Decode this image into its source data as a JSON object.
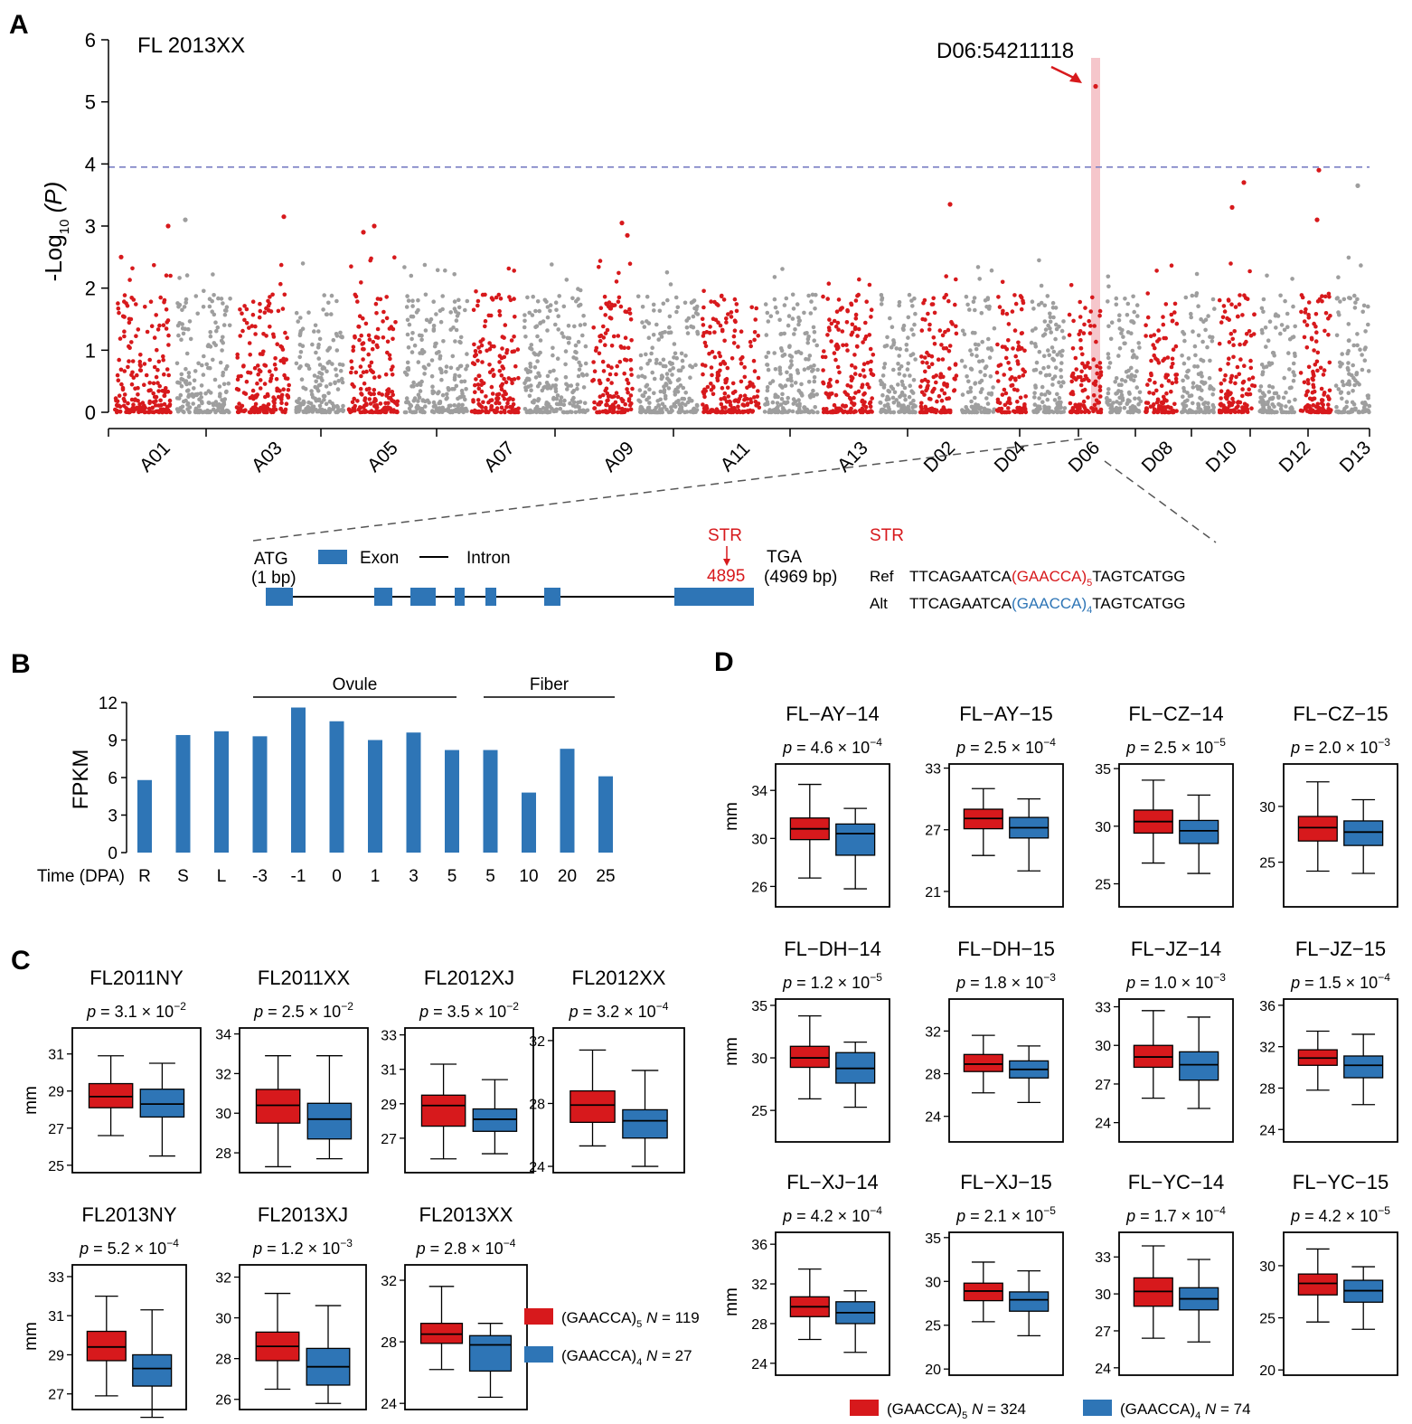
{
  "panels": {
    "A": "A",
    "B": "B",
    "C": "C",
    "D": "D"
  },
  "colors": {
    "red": "#d7191c",
    "blue": "#2e75b6",
    "grey": "#9e9e9e",
    "threshold": "#7b7fc4",
    "highlight": "#f5c6cb"
  },
  "panelA": {
    "title": "FL 2013XX",
    "ylabel_pre": "-Log",
    "ylabel_sub": "10",
    "ylabel_p": "(P)",
    "yticks": [
      "0",
      "1",
      "2",
      "3",
      "4",
      "5",
      "6"
    ],
    "peak_label": "D06:54211118",
    "chrom_labels": [
      "A01",
      "A03",
      "A05",
      "A07",
      "A09",
      "A11",
      "A13",
      "D02",
      "D04",
      "D06",
      "D08",
      "D10",
      "D12",
      "D13"
    ]
  },
  "gene": {
    "atg": "ATG",
    "atg_pos": "(1 bp)",
    "exon_legend": "Exon",
    "intron_legend": "Intron",
    "str_label": "STR",
    "str_pos": "4895",
    "tga": "TGA",
    "tga_pos": "(4969 bp)",
    "str_title": "STR",
    "ref_label": "Ref",
    "alt_label": "Alt",
    "seq_prefix": "TTCAGAATCA",
    "ref_motif": "(GAACCA)",
    "ref_sub": "5",
    "alt_motif": "(GAACCA)",
    "alt_sub": "4",
    "seq_suffix": "TAGTCATGG"
  },
  "chart_data": [
    {
      "panel": "A",
      "type": "scatter",
      "title": "FL 2013XX",
      "xlabel": "",
      "ylabel": "-Log10 (P)",
      "ylim": [
        0,
        6
      ],
      "threshold": 3.95,
      "highlight_chromosome": "D06",
      "peak": {
        "label": "D06:54211118",
        "y": 5.25
      },
      "notable_points": [
        {
          "chrom": "A01",
          "y": 2.5
        },
        {
          "chrom": "A01",
          "y": 3.0
        },
        {
          "chrom": "A02",
          "y": 3.1
        },
        {
          "chrom": "A03",
          "y": 3.15
        },
        {
          "chrom": "A05",
          "y": 3.0
        },
        {
          "chrom": "A05",
          "y": 2.9
        },
        {
          "chrom": "A09",
          "y": 3.05
        },
        {
          "chrom": "A09",
          "y": 2.85
        },
        {
          "chrom": "D02",
          "y": 3.35
        },
        {
          "chrom": "D06",
          "y": 5.25
        },
        {
          "chrom": "D10",
          "y": 3.7
        },
        {
          "chrom": "D10",
          "y": 3.3
        },
        {
          "chrom": "D12",
          "y": 3.9
        },
        {
          "chrom": "D12",
          "y": 3.1
        },
        {
          "chrom": "D13",
          "y": 3.65
        }
      ]
    },
    {
      "panel": "B",
      "type": "bar",
      "title": "",
      "xlabel": "Time (DPA)",
      "ylabel": "FPKM",
      "ylim": [
        0,
        12
      ],
      "yticks": [
        "0",
        "3",
        "6",
        "9",
        "12"
      ],
      "categories": [
        "R",
        "S",
        "L",
        "-3",
        "-1",
        "0",
        "1",
        "3",
        "5",
        "5",
        "10",
        "20",
        "25"
      ],
      "values": [
        5.8,
        9.4,
        9.7,
        9.3,
        11.6,
        10.5,
        9.0,
        9.6,
        8.2,
        8.2,
        4.8,
        8.3,
        6.1
      ],
      "groups": [
        {
          "name": "Ovule",
          "from": 3,
          "to": 8
        },
        {
          "name": "Fiber",
          "from": 9,
          "to": 11
        }
      ]
    },
    {
      "panel": "C",
      "type": "boxplot",
      "ylabel": "mm",
      "legend": [
        {
          "motif": "(GAACCA)",
          "sub": "5",
          "n": "N = 119",
          "color": "#d7191c"
        },
        {
          "motif": "(GAACCA)",
          "sub": "4",
          "n": "N = 27",
          "color": "#2e75b6"
        }
      ],
      "plots": [
        {
          "title": "FL2011NY",
          "p": "3.1 × 10",
          "exp": "−2",
          "ylim": [
            24.6,
            32.4
          ],
          "yticks": [
            "25",
            "27",
            "29",
            "31"
          ],
          "boxes": [
            {
              "min": 26.6,
              "q1": 28.1,
              "med": 28.7,
              "q3": 29.4,
              "max": 30.9
            },
            {
              "min": 25.5,
              "q1": 27.6,
              "med": 28.3,
              "q3": 29.1,
              "max": 30.5
            }
          ]
        },
        {
          "title": "FL2011XX",
          "p": "2.5 × 10",
          "exp": "−2",
          "ylim": [
            27.0,
            34.3
          ],
          "yticks": [
            "28",
            "30",
            "32",
            "34"
          ],
          "boxes": [
            {
              "min": 27.3,
              "q1": 29.5,
              "med": 30.4,
              "q3": 31.2,
              "max": 32.9
            },
            {
              "min": 27.7,
              "q1": 28.7,
              "med": 29.7,
              "q3": 30.5,
              "max": 32.9
            }
          ]
        },
        {
          "title": "FL2012XJ",
          "p": "3.5 × 10",
          "exp": "−2",
          "ylim": [
            25.0,
            33.4
          ],
          "yticks": [
            "27",
            "29",
            "31",
            "33"
          ],
          "boxes": [
            {
              "min": 25.8,
              "q1": 27.7,
              "med": 28.9,
              "q3": 29.5,
              "max": 31.3
            },
            {
              "min": 26.1,
              "q1": 27.4,
              "med": 28.1,
              "q3": 28.7,
              "max": 30.4
            }
          ]
        },
        {
          "title": "FL2012XX",
          "p": "3.2 × 10",
          "exp": "−4",
          "ylim": [
            23.6,
            32.8
          ],
          "yticks": [
            "24",
            "28",
            "32"
          ],
          "boxes": [
            {
              "min": 25.3,
              "q1": 26.8,
              "med": 27.9,
              "q3": 28.8,
              "max": 31.4
            },
            {
              "min": 24.0,
              "q1": 25.8,
              "med": 26.9,
              "q3": 27.6,
              "max": 30.1
            }
          ]
        },
        {
          "title": "FL2013NY",
          "p": "5.2 × 10",
          "exp": "−4",
          "ylim": [
            26.2,
            33.6
          ],
          "yticks": [
            "27",
            "29",
            "31",
            "33"
          ],
          "boxes": [
            {
              "min": 26.9,
              "q1": 28.7,
              "med": 29.4,
              "q3": 30.2,
              "max": 32.0
            },
            {
              "min": 25.8,
              "q1": 27.4,
              "med": 28.3,
              "q3": 29.0,
              "max": 31.3
            }
          ]
        },
        {
          "title": "FL2013XJ",
          "p": "1.2 × 10",
          "exp": "−3",
          "ylim": [
            25.5,
            32.6
          ],
          "yticks": [
            "26",
            "28",
            "30",
            "32"
          ],
          "boxes": [
            {
              "min": 26.5,
              "q1": 27.9,
              "med": 28.6,
              "q3": 29.3,
              "max": 31.2
            },
            {
              "min": 25.8,
              "q1": 26.7,
              "med": 27.6,
              "q3": 28.5,
              "max": 30.6
            }
          ]
        },
        {
          "title": "FL2013XX",
          "p": "2.8 × 10",
          "exp": "−4",
          "ylim": [
            23.6,
            33.0
          ],
          "yticks": [
            "24",
            "28",
            "32"
          ],
          "boxes": [
            {
              "min": 26.2,
              "q1": 27.9,
              "med": 28.5,
              "q3": 29.2,
              "max": 31.6
            },
            {
              "min": 24.4,
              "q1": 26.1,
              "med": 27.8,
              "q3": 28.4,
              "max": 29.2
            }
          ]
        }
      ]
    },
    {
      "panel": "D",
      "type": "boxplot",
      "ylabel": "mm",
      "legend": [
        {
          "motif": "(GAACCA)",
          "sub": "5",
          "n": "N = 324",
          "color": "#d7191c"
        },
        {
          "motif": "(GAACCA)",
          "sub": "4",
          "n": "N = 74",
          "color": "#2e75b6"
        }
      ],
      "plots": [
        {
          "title": "FL−AY−14",
          "p": "4.6 × 10",
          "exp": "−4",
          "ylim": [
            24.3,
            36.2
          ],
          "yticks": [
            "26",
            "30",
            "34"
          ],
          "boxes": [
            {
              "min": 26.7,
              "q1": 29.9,
              "med": 30.8,
              "q3": 31.7,
              "max": 34.5
            },
            {
              "min": 25.8,
              "q1": 28.6,
              "med": 30.4,
              "q3": 31.2,
              "max": 32.5
            }
          ]
        },
        {
          "title": "FL−AY−15",
          "p": "2.5 × 10",
          "exp": "−4",
          "ylim": [
            19.5,
            33.4
          ],
          "yticks": [
            "21",
            "27",
            "33"
          ],
          "boxes": [
            {
              "min": 24.5,
              "q1": 27.1,
              "med": 28.1,
              "q3": 29.0,
              "max": 31.0
            },
            {
              "min": 23.0,
              "q1": 26.2,
              "med": 27.2,
              "q3": 28.2,
              "max": 30.0
            }
          ]
        },
        {
          "title": "FL−CZ−14",
          "p": "2.5 × 10",
          "exp": "−5",
          "ylim": [
            23.0,
            35.4
          ],
          "yticks": [
            "25",
            "30",
            "35"
          ],
          "boxes": [
            {
              "min": 26.8,
              "q1": 29.4,
              "med": 30.4,
              "q3": 31.4,
              "max": 34.0
            },
            {
              "min": 25.9,
              "q1": 28.5,
              "med": 29.6,
              "q3": 30.5,
              "max": 32.7
            }
          ]
        },
        {
          "title": "FL−CZ−15",
          "p": "2.0 × 10",
          "exp": "−3",
          "ylim": [
            21.0,
            33.8
          ],
          "yticks": [
            "25",
            "30"
          ],
          "boxes": [
            {
              "min": 24.2,
              "q1": 26.9,
              "med": 28.1,
              "q3": 29.1,
              "max": 32.2
            },
            {
              "min": 24.0,
              "q1": 26.5,
              "med": 27.7,
              "q3": 28.7,
              "max": 30.6
            }
          ]
        },
        {
          "title": "FL−DH−14",
          "p": "1.2 × 10",
          "exp": "−5",
          "ylim": [
            22.0,
            35.6
          ],
          "yticks": [
            "25",
            "30",
            "35"
          ],
          "boxes": [
            {
              "min": 26.1,
              "q1": 29.1,
              "med": 30.0,
              "q3": 31.1,
              "max": 34.0
            },
            {
              "min": 25.3,
              "q1": 27.6,
              "med": 29.0,
              "q3": 30.5,
              "max": 31.5
            }
          ]
        },
        {
          "title": "FL−DH−15",
          "p": "1.8 × 10",
          "exp": "−3",
          "ylim": [
            21.6,
            35.0
          ],
          "yticks": [
            "24",
            "28",
            "32"
          ],
          "boxes": [
            {
              "min": 26.2,
              "q1": 28.2,
              "med": 28.9,
              "q3": 29.8,
              "max": 31.6
            },
            {
              "min": 25.3,
              "q1": 27.6,
              "med": 28.4,
              "q3": 29.2,
              "max": 30.6
            }
          ]
        },
        {
          "title": "FL−JZ−14",
          "p": "1.0 × 10",
          "exp": "−3",
          "ylim": [
            22.5,
            33.6
          ],
          "yticks": [
            "24",
            "27",
            "30",
            "33"
          ],
          "boxes": [
            {
              "min": 25.9,
              "q1": 28.3,
              "med": 29.1,
              "q3": 30.0,
              "max": 32.7
            },
            {
              "min": 25.1,
              "q1": 27.3,
              "med": 28.5,
              "q3": 29.5,
              "max": 32.2
            }
          ]
        },
        {
          "title": "FL−JZ−15",
          "p": "1.5 × 10",
          "exp": "−4",
          "ylim": [
            22.8,
            36.6
          ],
          "yticks": [
            "24",
            "28",
            "32",
            "36"
          ],
          "boxes": [
            {
              "min": 27.8,
              "q1": 30.2,
              "med": 30.9,
              "q3": 31.7,
              "max": 33.5
            },
            {
              "min": 26.4,
              "q1": 29.0,
              "med": 30.2,
              "q3": 31.1,
              "max": 33.2
            }
          ]
        },
        {
          "title": "FL−XJ−14",
          "p": "4.2 × 10",
          "exp": "−4",
          "ylim": [
            22.8,
            37.2
          ],
          "yticks": [
            "24",
            "28",
            "32",
            "36"
          ],
          "boxes": [
            {
              "min": 26.4,
              "q1": 28.7,
              "med": 29.7,
              "q3": 30.7,
              "max": 33.5
            },
            {
              "min": 25.1,
              "q1": 28.0,
              "med": 29.1,
              "q3": 30.2,
              "max": 31.3
            }
          ]
        },
        {
          "title": "FL−XJ−15",
          "p": "2.1 × 10",
          "exp": "−5",
          "ylim": [
            19.3,
            35.6
          ],
          "yticks": [
            "20",
            "25",
            "30",
            "35"
          ],
          "boxes": [
            {
              "min": 25.4,
              "q1": 27.8,
              "med": 28.9,
              "q3": 29.8,
              "max": 32.2
            },
            {
              "min": 23.8,
              "q1": 26.6,
              "med": 27.9,
              "q3": 28.8,
              "max": 31.2
            }
          ]
        },
        {
          "title": "FL−YC−14",
          "p": "1.7 × 10",
          "exp": "−4",
          "ylim": [
            23.4,
            35.0
          ],
          "yticks": [
            "24",
            "27",
            "30",
            "33"
          ],
          "boxes": [
            {
              "min": 26.4,
              "q1": 29.0,
              "med": 30.2,
              "q3": 31.3,
              "max": 33.9
            },
            {
              "min": 26.1,
              "q1": 28.7,
              "med": 29.6,
              "q3": 30.5,
              "max": 32.8
            }
          ]
        },
        {
          "title": "FL−YC−15",
          "p": "4.2 × 10",
          "exp": "−5",
          "ylim": [
            19.5,
            33.2
          ],
          "yticks": [
            "20",
            "25",
            "30"
          ],
          "boxes": [
            {
              "min": 24.6,
              "q1": 27.2,
              "med": 28.3,
              "q3": 29.2,
              "max": 31.6
            },
            {
              "min": 23.9,
              "q1": 26.5,
              "med": 27.6,
              "q3": 28.6,
              "max": 29.9
            }
          ]
        }
      ]
    }
  ]
}
